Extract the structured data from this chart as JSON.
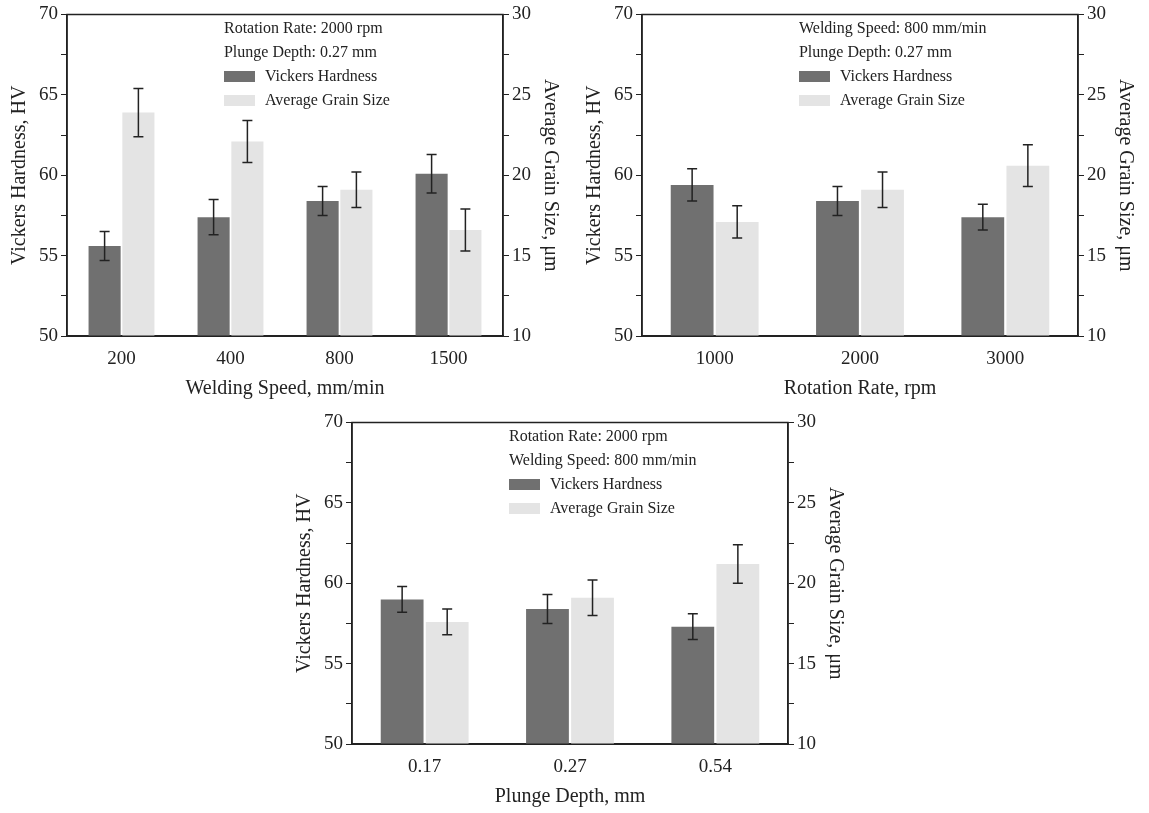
{
  "chart_data": [
    {
      "type": "bar",
      "xlabel": "Welding Speed, mm/min",
      "ylabel": "Vickers Hardness, HV",
      "y2label": "Average Grain Size, μm",
      "categories": [
        "200",
        "400",
        "800",
        "1500"
      ],
      "series": [
        {
          "name": "Vickers Hardness",
          "color": "#707070",
          "values": [
            55.6,
            57.4,
            58.4,
            60.1
          ],
          "errors": [
            0.9,
            1.1,
            0.9,
            1.2
          ]
        },
        {
          "name": "Average Grain Size",
          "color": "#e4e4e4",
          "axis": "y2",
          "values": [
            23.9,
            22.1,
            19.1,
            16.6
          ],
          "errors": [
            1.5,
            1.3,
            1.1,
            1.3
          ]
        }
      ],
      "ylim": [
        50,
        70
      ],
      "yticks": [
        50,
        {
          "value": 52.5,
          "label": null
        },
        55,
        {
          "value": 57.5,
          "label": null
        },
        60,
        {
          "value": 62.5,
          "label": null
        },
        65,
        {
          "value": 67.5,
          "label": null
        },
        70
      ],
      "y2lim": [
        10,
        30
      ],
      "y2ticks": [
        10,
        {
          "value": 12.5,
          "label": null
        },
        15,
        {
          "value": 17.5,
          "label": null
        },
        20,
        {
          "value": 22.5,
          "label": null
        },
        25,
        {
          "value": 27.5,
          "label": null
        },
        30
      ],
      "annotations": [
        "Rotation Rate: 2000 rpm",
        "Plunge Depth: 0.27 mm"
      ],
      "legend": "top",
      "grid": false
    },
    {
      "type": "bar",
      "xlabel": "Rotation Rate, rpm",
      "ylabel": "Vickers Hardness, HV",
      "y2label": "Average Grain Size, μm",
      "categories": [
        "1000",
        "2000",
        "3000"
      ],
      "series": [
        {
          "name": "Vickers Hardness",
          "color": "#707070",
          "values": [
            59.4,
            58.4,
            57.4
          ],
          "errors": [
            1.0,
            0.9,
            0.8
          ]
        },
        {
          "name": "Average Grain Size",
          "color": "#e4e4e4",
          "axis": "y2",
          "values": [
            17.1,
            19.1,
            20.6
          ],
          "errors": [
            1.0,
            1.1,
            1.3
          ]
        }
      ],
      "ylim": [
        50,
        70
      ],
      "yticks": [
        50,
        {
          "value": 52.5,
          "label": null
        },
        55,
        {
          "value": 57.5,
          "label": null
        },
        60,
        {
          "value": 62.5,
          "label": null
        },
        65,
        {
          "value": 67.5,
          "label": null
        },
        70
      ],
      "y2lim": [
        10,
        30
      ],
      "y2ticks": [
        10,
        {
          "value": 12.5,
          "label": null
        },
        15,
        {
          "value": 17.5,
          "label": null
        },
        20,
        {
          "value": 22.5,
          "label": null
        },
        25,
        {
          "value": 27.5,
          "label": null
        },
        30
      ],
      "annotations": [
        "Welding Speed: 800 mm/min",
        "Plunge Depth: 0.27 mm"
      ],
      "legend": "top",
      "grid": false
    },
    {
      "type": "bar",
      "xlabel": "Plunge Depth, mm",
      "ylabel": "Vickers Hardness, HV",
      "y2label": "Average Grain Size, μm",
      "categories": [
        "0.17",
        "0.27",
        "0.54"
      ],
      "series": [
        {
          "name": "Vickers Hardness",
          "color": "#707070",
          "values": [
            59.0,
            58.4,
            57.3
          ],
          "errors": [
            0.8,
            0.9,
            0.8
          ]
        },
        {
          "name": "Average Grain Size",
          "color": "#e4e4e4",
          "axis": "y2",
          "values": [
            17.6,
            19.1,
            21.2
          ],
          "errors": [
            0.8,
            1.1,
            1.2
          ]
        }
      ],
      "ylim": [
        50,
        70
      ],
      "yticks": [
        50,
        {
          "value": 52.5,
          "label": null
        },
        55,
        {
          "value": 57.5,
          "label": null
        },
        60,
        {
          "value": 62.5,
          "label": null
        },
        65,
        {
          "value": 67.5,
          "label": null
        },
        70
      ],
      "y2lim": [
        10,
        30
      ],
      "y2ticks": [
        10,
        {
          "value": 12.5,
          "label": null
        },
        15,
        {
          "value": 17.5,
          "label": null
        },
        20,
        {
          "value": 22.5,
          "label": null
        },
        25,
        {
          "value": 27.5,
          "label": null
        },
        30
      ],
      "annotations": [
        "Rotation Rate: 2000 rpm",
        "Welding Speed: 800 mm/min"
      ],
      "legend": "top",
      "grid": false
    }
  ]
}
